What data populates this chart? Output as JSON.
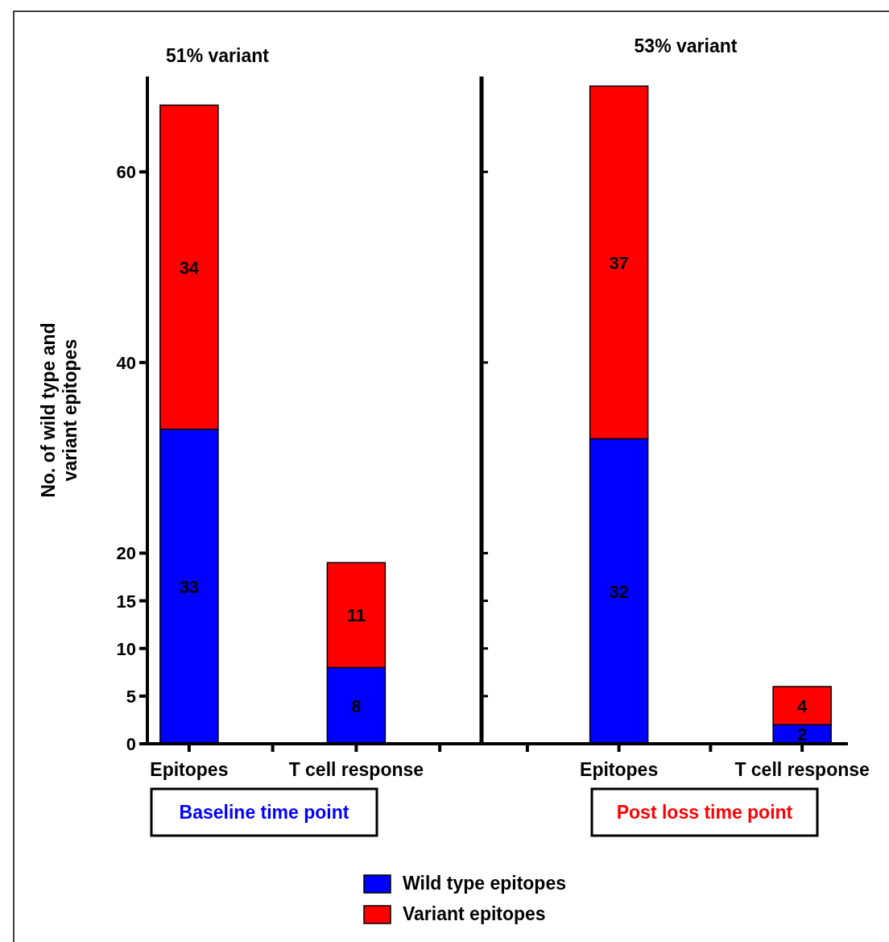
{
  "chart_data": [
    {
      "type": "bar",
      "title": "51% variant",
      "xlabel": "Baseline time point",
      "ylabel": "No. of wild type and variant epitopes",
      "categories": [
        "Epitopes",
        null,
        "T cell response",
        null
      ],
      "stacked": true,
      "series": [
        {
          "name": "Wild type epitopes",
          "color": "#0000ff",
          "values": [
            33,
            null,
            8,
            null
          ]
        },
        {
          "name": "Variant epitopes",
          "color": "#ff0000",
          "values": [
            34,
            null,
            11,
            null
          ]
        }
      ],
      "ylim": [
        0,
        70
      ],
      "yticks": [
        0,
        5,
        10,
        15,
        20,
        40,
        60
      ],
      "data_labels": true,
      "legend": "bottom"
    },
    {
      "type": "bar",
      "title": "53% variant",
      "xlabel": "Post loss time point",
      "categories": [
        null,
        "Epitopes",
        null,
        "T cell response"
      ],
      "stacked": true,
      "series": [
        {
          "color": "#0000ff",
          "values": [
            null,
            32,
            null,
            2
          ]
        },
        {
          "color": "#ff0000",
          "values": [
            null,
            37,
            null,
            4
          ]
        }
      ],
      "ylim": [
        0,
        70
      ],
      "yticks": [
        0,
        5,
        10,
        15,
        20,
        40,
        60
      ],
      "tick_labels": "x",
      "data_labels": true
    }
  ]
}
